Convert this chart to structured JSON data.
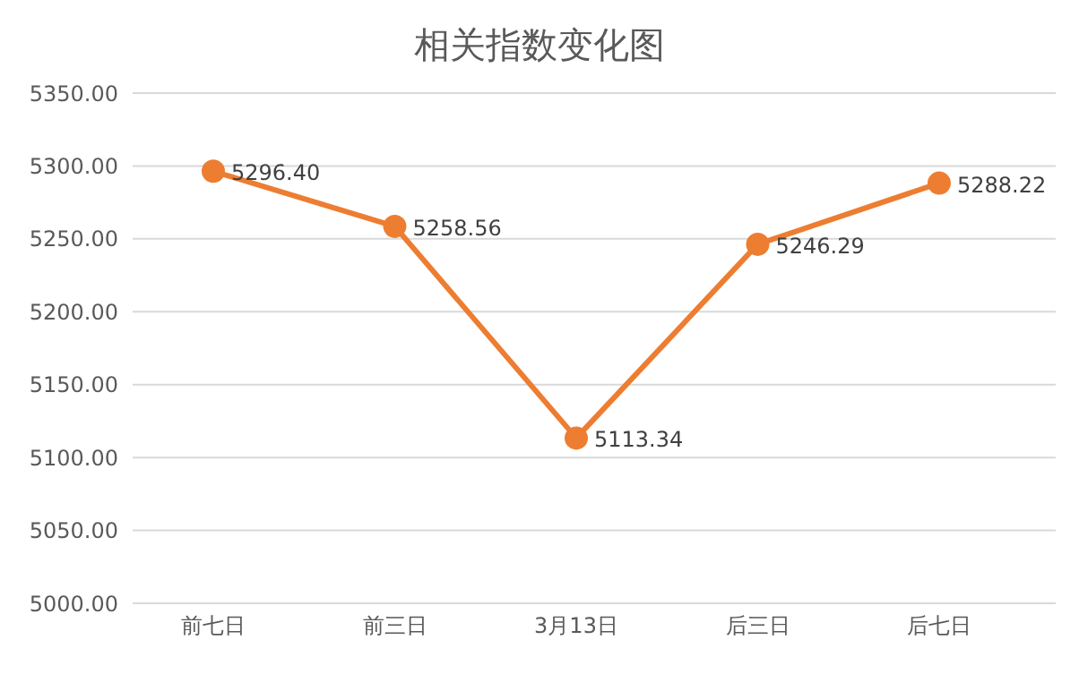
{
  "chart_data": {
    "type": "line",
    "title": "相关指数变化图",
    "categories": [
      "前七日",
      "前三日",
      "3月13日",
      "后三日",
      "后七日"
    ],
    "series": [
      {
        "color": "#ed7d31",
        "values": [
          5296.4,
          5258.56,
          5113.34,
          5246.29,
          5288.22
        ],
        "value_labels": [
          "5296.40",
          "5258.56",
          "5113.34",
          "5246.29",
          "5288.22"
        ]
      }
    ],
    "ylim": [
      5000,
      5350
    ],
    "yticks": [
      {
        "value": 5000,
        "label": "5000.00"
      },
      {
        "value": 5050,
        "label": "5050.00"
      },
      {
        "value": 5100,
        "label": "5100.00"
      },
      {
        "value": 5150,
        "label": "5150.00"
      },
      {
        "value": 5200,
        "label": "5200.00"
      },
      {
        "value": 5250,
        "label": "5250.00"
      },
      {
        "value": 5300,
        "label": "5300.00"
      },
      {
        "value": 5350,
        "label": "5350.00"
      }
    ],
    "grid": "y",
    "legend": false,
    "marker": "circle",
    "line_style": "solid"
  }
}
